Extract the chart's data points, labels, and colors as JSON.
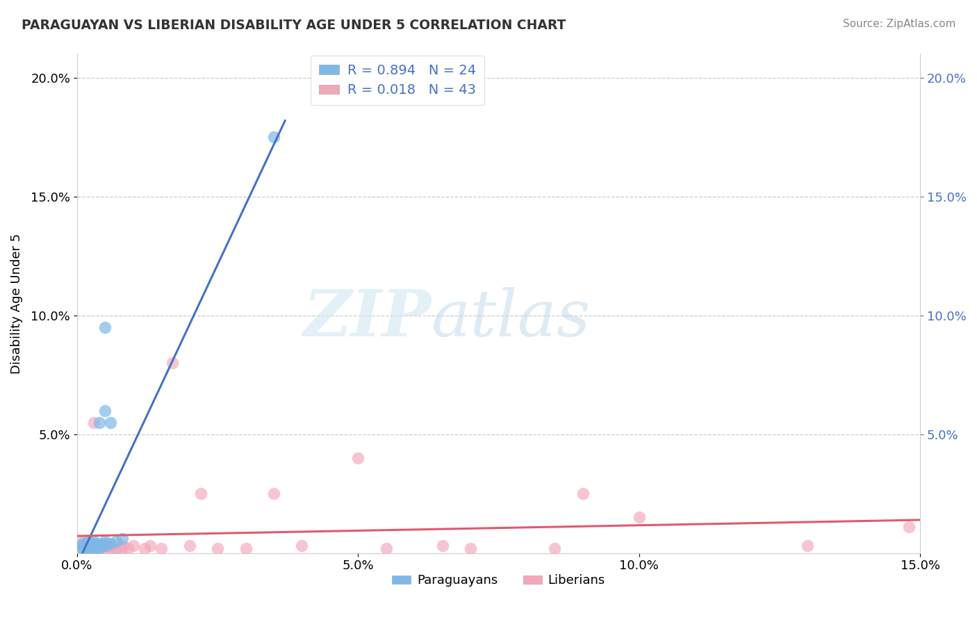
{
  "title": "PARAGUAYAN VS LIBERIAN DISABILITY AGE UNDER 5 CORRELATION CHART",
  "source": "Source: ZipAtlas.com",
  "ylabel": "Disability Age Under 5",
  "xlim": [
    0.0,
    0.15
  ],
  "ylim": [
    0.0,
    0.21
  ],
  "xtick_labels": [
    "0.0%",
    "5.0%",
    "10.0%",
    "15.0%"
  ],
  "xtick_vals": [
    0.0,
    0.05,
    0.1,
    0.15
  ],
  "ytick_labels": [
    "5.0%",
    "10.0%",
    "15.0%",
    "20.0%"
  ],
  "ytick_vals": [
    0.05,
    0.1,
    0.15,
    0.2
  ],
  "legend_r_par": "R = 0.894",
  "legend_n_par": "N = 24",
  "legend_r_lib": "R = 0.018",
  "legend_n_lib": "N = 43",
  "color_par": "#7cb9e8",
  "color_lib": "#f4a7b9",
  "color_par_line": "#4472c4",
  "color_lib_line": "#e05a6e",
  "watermark_zip": "ZIP",
  "watermark_atlas": "atlas",
  "bg": "#ffffff",
  "par_x": [
    0.001,
    0.001,
    0.001,
    0.002,
    0.002,
    0.002,
    0.003,
    0.003,
    0.003,
    0.003,
    0.004,
    0.004,
    0.004,
    0.004,
    0.005,
    0.005,
    0.005,
    0.005,
    0.006,
    0.006,
    0.007,
    0.008,
    0.005,
    0.035
  ],
  "par_y": [
    0.002,
    0.003,
    0.004,
    0.002,
    0.003,
    0.005,
    0.002,
    0.003,
    0.004,
    0.005,
    0.002,
    0.003,
    0.004,
    0.055,
    0.003,
    0.004,
    0.005,
    0.06,
    0.004,
    0.055,
    0.005,
    0.006,
    0.095,
    0.175
  ],
  "lib_x": [
    0.001,
    0.001,
    0.001,
    0.001,
    0.002,
    0.002,
    0.002,
    0.002,
    0.003,
    0.003,
    0.003,
    0.003,
    0.004,
    0.004,
    0.005,
    0.005,
    0.006,
    0.006,
    0.007,
    0.007,
    0.008,
    0.008,
    0.009,
    0.01,
    0.012,
    0.013,
    0.015,
    0.017,
    0.02,
    0.022,
    0.025,
    0.03,
    0.035,
    0.04,
    0.05,
    0.055,
    0.065,
    0.07,
    0.085,
    0.09,
    0.1,
    0.13,
    0.148
  ],
  "lib_y": [
    0.001,
    0.002,
    0.003,
    0.005,
    0.001,
    0.002,
    0.003,
    0.004,
    0.001,
    0.002,
    0.003,
    0.055,
    0.002,
    0.003,
    0.002,
    0.003,
    0.002,
    0.003,
    0.001,
    0.002,
    0.002,
    0.003,
    0.002,
    0.003,
    0.002,
    0.003,
    0.002,
    0.08,
    0.003,
    0.025,
    0.002,
    0.002,
    0.025,
    0.003,
    0.04,
    0.002,
    0.003,
    0.002,
    0.002,
    0.025,
    0.015,
    0.003,
    0.011
  ]
}
